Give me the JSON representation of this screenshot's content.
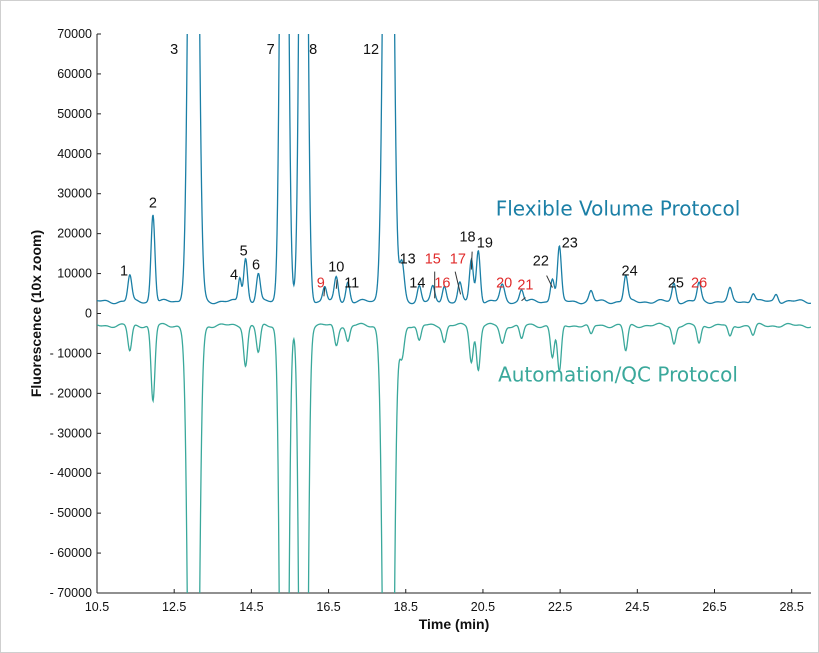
{
  "chart_data": {
    "type": "line",
    "xlabel": "Time (min)",
    "ylabel": "Fluorescence (10x zoom)",
    "xlim": [
      10.5,
      29.0
    ],
    "ylim": [
      -70000,
      70000
    ],
    "x_ticks": [
      "10.5",
      "12.5",
      "14.5",
      "16.5",
      "18.5",
      "20.5",
      "22.5",
      "24.5",
      "26.5",
      "28.5"
    ],
    "y_ticks": [
      "70000",
      "60000",
      "50000",
      "40000",
      "30000",
      "20000",
      "10000",
      "0",
      "- 10000",
      "- 20000",
      "- 30000",
      "- 40000",
      "- 50000",
      "- 60000",
      "- 70000"
    ],
    "series": [
      {
        "name": "Flexible Volume Protocol",
        "color": "#1b7fa6",
        "baseline": 3000,
        "peaks": [
          {
            "x": 11.35,
            "y": 6500,
            "w": 0.05
          },
          {
            "x": 11.95,
            "y": 22000,
            "w": 0.05
          },
          {
            "x": 13.0,
            "y": 250000,
            "w": 0.1
          },
          {
            "x": 14.2,
            "y": 6000,
            "w": 0.04
          },
          {
            "x": 14.35,
            "y": 11000,
            "w": 0.05
          },
          {
            "x": 14.68,
            "y": 7000,
            "w": 0.05
          },
          {
            "x": 15.35,
            "y": 250000,
            "w": 0.08
          },
          {
            "x": 15.85,
            "y": 250000,
            "w": 0.08
          },
          {
            "x": 16.4,
            "y": 3800,
            "w": 0.05
          },
          {
            "x": 16.7,
            "y": 6000,
            "w": 0.05
          },
          {
            "x": 17.0,
            "y": 5000,
            "w": 0.05
          },
          {
            "x": 18.05,
            "y": 250000,
            "w": 0.1
          },
          {
            "x": 18.4,
            "y": 9500,
            "w": 0.06
          },
          {
            "x": 18.85,
            "y": 4000,
            "w": 0.05
          },
          {
            "x": 19.2,
            "y": 3500,
            "w": 0.05
          },
          {
            "x": 19.5,
            "y": 4000,
            "w": 0.05
          },
          {
            "x": 19.9,
            "y": 4500,
            "w": 0.05
          },
          {
            "x": 20.2,
            "y": 10500,
            "w": 0.05
          },
          {
            "x": 20.38,
            "y": 13000,
            "w": 0.05
          },
          {
            "x": 21.0,
            "y": 4000,
            "w": 0.06
          },
          {
            "x": 21.5,
            "y": 3000,
            "w": 0.05
          },
          {
            "x": 22.3,
            "y": 6000,
            "w": 0.05
          },
          {
            "x": 22.48,
            "y": 13500,
            "w": 0.05
          },
          {
            "x": 23.3,
            "y": 2500,
            "w": 0.05
          },
          {
            "x": 24.2,
            "y": 6500,
            "w": 0.05
          },
          {
            "x": 25.45,
            "y": 4500,
            "w": 0.05
          },
          {
            "x": 26.1,
            "y": 4500,
            "w": 0.05
          },
          {
            "x": 26.9,
            "y": 3000,
            "w": 0.05
          },
          {
            "x": 27.5,
            "y": 2200,
            "w": 0.05
          },
          {
            "x": 28.1,
            "y": 2000,
            "w": 0.05
          }
        ]
      },
      {
        "name": "Automation/QC Protocol",
        "color": "#3aa89b",
        "baseline": -3000,
        "peaks": [
          {
            "x": 11.35,
            "y": -6500,
            "w": 0.05
          },
          {
            "x": 11.95,
            "y": -19000,
            "w": 0.05
          },
          {
            "x": 13.0,
            "y": -250000,
            "w": 0.1
          },
          {
            "x": 14.35,
            "y": -10000,
            "w": 0.05
          },
          {
            "x": 14.68,
            "y": -7000,
            "w": 0.05
          },
          {
            "x": 15.35,
            "y": -250000,
            "w": 0.08
          },
          {
            "x": 15.85,
            "y": -250000,
            "w": 0.08
          },
          {
            "x": 16.7,
            "y": -5000,
            "w": 0.05
          },
          {
            "x": 17.0,
            "y": -4000,
            "w": 0.05
          },
          {
            "x": 18.05,
            "y": -250000,
            "w": 0.1
          },
          {
            "x": 18.4,
            "y": -8000,
            "w": 0.06
          },
          {
            "x": 18.85,
            "y": -4000,
            "w": 0.05
          },
          {
            "x": 19.5,
            "y": -4000,
            "w": 0.05
          },
          {
            "x": 20.2,
            "y": -9000,
            "w": 0.05
          },
          {
            "x": 20.38,
            "y": -11000,
            "w": 0.05
          },
          {
            "x": 21.0,
            "y": -4500,
            "w": 0.06
          },
          {
            "x": 21.5,
            "y": -3500,
            "w": 0.05
          },
          {
            "x": 22.3,
            "y": -8000,
            "w": 0.05
          },
          {
            "x": 22.48,
            "y": -12000,
            "w": 0.05
          },
          {
            "x": 23.3,
            "y": -2500,
            "w": 0.05
          },
          {
            "x": 24.2,
            "y": -6500,
            "w": 0.05
          },
          {
            "x": 25.45,
            "y": -4500,
            "w": 0.05
          },
          {
            "x": 26.1,
            "y": -4500,
            "w": 0.05
          },
          {
            "x": 26.9,
            "y": -3000,
            "w": 0.05
          },
          {
            "x": 27.5,
            "y": -2500,
            "w": 0.05
          }
        ]
      }
    ],
    "annotations": [
      {
        "text": "Flexible Volume Protocol",
        "x": 24.0,
        "y": 24500,
        "color": "#1b7fa6",
        "kind": "series"
      },
      {
        "text": "Automation/QC Protocol",
        "x": 24.0,
        "y": -17000,
        "color": "#3aa89b",
        "kind": "series"
      }
    ],
    "peak_labels": [
      {
        "text": "1",
        "x": 11.2,
        "y": 9500,
        "color": "#111111"
      },
      {
        "text": "2",
        "x": 11.95,
        "y": 26500,
        "color": "#111111"
      },
      {
        "text": "3",
        "x": 12.5,
        "y": 65000,
        "color": "#111111"
      },
      {
        "text": "4",
        "x": 14.05,
        "y": 8500,
        "color": "#111111"
      },
      {
        "text": "5",
        "x": 14.3,
        "y": 14500,
        "color": "#111111"
      },
      {
        "text": "6",
        "x": 14.62,
        "y": 11000,
        "color": "#111111"
      },
      {
        "text": "7",
        "x": 15.0,
        "y": 65000,
        "color": "#111111"
      },
      {
        "text": "8",
        "x": 16.1,
        "y": 65000,
        "color": "#111111"
      },
      {
        "text": "9",
        "x": 16.3,
        "y": 6500,
        "color": "#e02a2a"
      },
      {
        "text": "10",
        "x": 16.7,
        "y": 10500,
        "color": "#111111"
      },
      {
        "text": "11",
        "x": 17.1,
        "y": 6500,
        "color": "#111111"
      },
      {
        "text": "12",
        "x": 17.6,
        "y": 65000,
        "color": "#111111"
      },
      {
        "text": "13",
        "x": 18.55,
        "y": 12500,
        "color": "#111111"
      },
      {
        "text": "14",
        "x": 18.8,
        "y": 6500,
        "color": "#111111"
      },
      {
        "text": "15",
        "x": 19.2,
        "y": 12500,
        "color": "#e02a2a"
      },
      {
        "text": "16",
        "x": 19.45,
        "y": 6500,
        "color": "#e02a2a"
      },
      {
        "text": "17",
        "x": 19.85,
        "y": 12500,
        "color": "#e02a2a"
      },
      {
        "text": "18",
        "x": 20.1,
        "y": 18000,
        "color": "#111111"
      },
      {
        "text": "19",
        "x": 20.55,
        "y": 16500,
        "color": "#111111"
      },
      {
        "text": "20",
        "x": 21.05,
        "y": 6500,
        "color": "#e02a2a"
      },
      {
        "text": "21",
        "x": 21.6,
        "y": 6000,
        "color": "#e02a2a"
      },
      {
        "text": "22",
        "x": 22.0,
        "y": 12000,
        "color": "#111111"
      },
      {
        "text": "23",
        "x": 22.75,
        "y": 16500,
        "color": "#111111"
      },
      {
        "text": "24",
        "x": 24.3,
        "y": 9500,
        "color": "#111111"
      },
      {
        "text": "25",
        "x": 25.5,
        "y": 6500,
        "color": "#111111"
      },
      {
        "text": "26",
        "x": 26.1,
        "y": 6500,
        "color": "#e02a2a"
      }
    ],
    "leader_lines": [
      {
        "x1": 16.4,
        "y1": 6500,
        "x2": 16.38,
        "y2": 4300
      },
      {
        "x1": 16.72,
        "y1": 8500,
        "x2": 16.7,
        "y2": 6200
      },
      {
        "x1": 19.25,
        "y1": 10500,
        "x2": 19.25,
        "y2": 3800
      },
      {
        "x1": 19.78,
        "y1": 10500,
        "x2": 19.92,
        "y2": 4800
      },
      {
        "x1": 20.22,
        "y1": 15500,
        "x2": 20.2,
        "y2": 11000
      },
      {
        "x1": 21.6,
        "y1": 4000,
        "x2": 21.5,
        "y2": 3200
      },
      {
        "x1": 22.15,
        "y1": 9500,
        "x2": 22.3,
        "y2": 6500
      }
    ]
  }
}
